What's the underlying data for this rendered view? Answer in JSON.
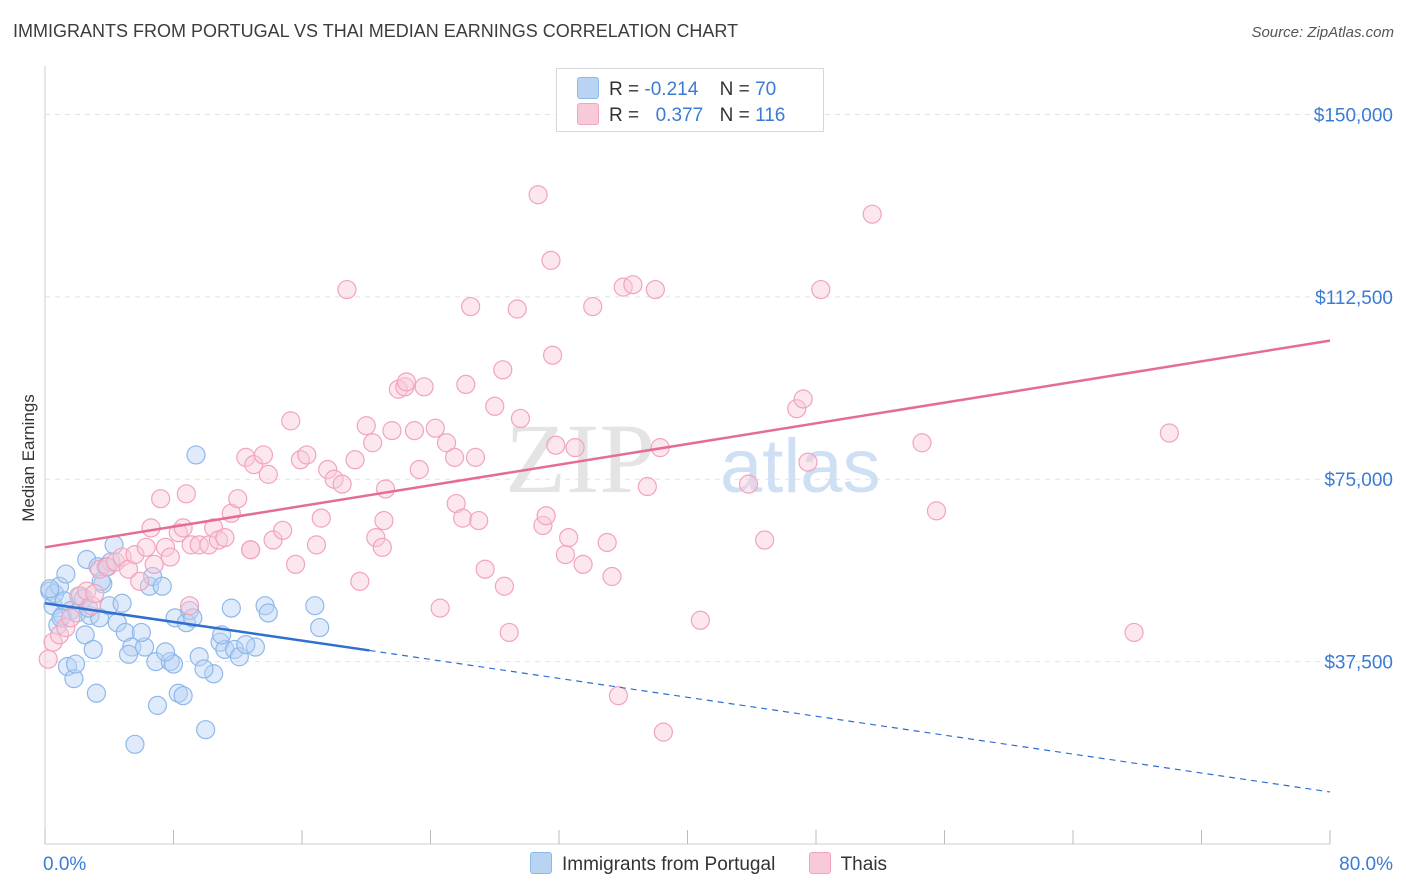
{
  "header": {
    "title": "IMMIGRANTS FROM PORTUGAL VS THAI MEDIAN EARNINGS CORRELATION CHART",
    "source": "Source: ZipAtlas.com"
  },
  "watermark": {
    "part1": "ZIP",
    "part2": "atlas"
  },
  "stats_legend": {
    "rows": [
      {
        "r_label": "R =",
        "r_value": "-0.214",
        "n_label": "N =",
        "n_value": "70",
        "color": "#8fb8ea"
      },
      {
        "r_label": "R =",
        "r_value": "0.377",
        "n_label": "N =",
        "n_value": "116",
        "color": "#f2a3bd"
      }
    ]
  },
  "chart_data": {
    "type": "scatter",
    "title": "IMMIGRANTS FROM PORTUGAL VS THAI MEDIAN EARNINGS CORRELATION CHART",
    "xlabel": "",
    "ylabel": "Median Earnings",
    "xlim": [
      0,
      80
    ],
    "ylim": [
      0,
      157500
    ],
    "x_tick_labels": [
      "0.0%",
      "80.0%"
    ],
    "y_ticks": [
      37500,
      75000,
      112500,
      150000
    ],
    "y_tick_labels": [
      "$37,500",
      "$75,000",
      "$112,500",
      "$150,000"
    ],
    "grid": true,
    "legend_position": "bottom",
    "series": [
      {
        "name": "Immigrants from Portugal",
        "color": "#8fb8ea",
        "line_color": "#2f6fd0",
        "trend": {
          "x0": 0.0,
          "y0": 49500,
          "x1": 20.2,
          "y1": 39800,
          "x_end": 80.0,
          "y_end": 10700
        },
        "points": [
          [
            0.3,
            52000
          ],
          [
            0.5,
            49000
          ],
          [
            0.6,
            51500
          ],
          [
            0.8,
            45000
          ],
          [
            0.9,
            53000
          ],
          [
            1.1,
            47000
          ],
          [
            1.2,
            50000
          ],
          [
            1.3,
            55500
          ],
          [
            1.4,
            36500
          ],
          [
            1.6,
            48000
          ],
          [
            1.8,
            34000
          ],
          [
            1.9,
            37000
          ],
          [
            2.0,
            47500
          ],
          [
            2.2,
            51000
          ],
          [
            2.4,
            50500
          ],
          [
            2.5,
            43000
          ],
          [
            2.6,
            58500
          ],
          [
            2.8,
            47000
          ],
          [
            3.0,
            40000
          ],
          [
            3.2,
            31000
          ],
          [
            3.3,
            57000
          ],
          [
            3.4,
            46500
          ],
          [
            3.6,
            53500
          ],
          [
            3.8,
            57000
          ],
          [
            4.0,
            49000
          ],
          [
            4.3,
            61500
          ],
          [
            4.5,
            45500
          ],
          [
            4.8,
            49500
          ],
          [
            5.0,
            43500
          ],
          [
            5.4,
            40500
          ],
          [
            5.6,
            20500
          ],
          [
            6.2,
            40500
          ],
          [
            6.5,
            53000
          ],
          [
            6.7,
            55000
          ],
          [
            6.9,
            37500
          ],
          [
            7.0,
            28500
          ],
          [
            7.3,
            53000
          ],
          [
            7.8,
            37500
          ],
          [
            8.0,
            37000
          ],
          [
            8.1,
            46500
          ],
          [
            8.3,
            31000
          ],
          [
            8.6,
            30500
          ],
          [
            8.8,
            45500
          ],
          [
            9.0,
            48000
          ],
          [
            9.2,
            46500
          ],
          [
            9.4,
            80000
          ],
          [
            9.6,
            38500
          ],
          [
            10.0,
            23500
          ],
          [
            10.5,
            35000
          ],
          [
            10.9,
            41500
          ],
          [
            11.2,
            40000
          ],
          [
            11.6,
            48500
          ],
          [
            11.8,
            40000
          ],
          [
            12.1,
            38500
          ],
          [
            13.1,
            40500
          ],
          [
            13.7,
            49000
          ],
          [
            13.9,
            47500
          ],
          [
            16.8,
            49000
          ],
          [
            17.1,
            44500
          ],
          [
            0.3,
            52500
          ],
          [
            1.0,
            46500
          ],
          [
            2.7,
            48500
          ],
          [
            3.5,
            54000
          ],
          [
            4.1,
            58000
          ],
          [
            5.2,
            39000
          ],
          [
            6.0,
            43500
          ],
          [
            7.5,
            39500
          ],
          [
            9.9,
            36000
          ],
          [
            11.0,
            43000
          ],
          [
            12.5,
            41000
          ]
        ]
      },
      {
        "name": "Thais",
        "color": "#f2a3bd",
        "line_color": "#e36d93",
        "trend": {
          "x0": 0.0,
          "y0": 61000,
          "x1": 80.0,
          "y1": 103500
        },
        "points": [
          [
            0.2,
            38000
          ],
          [
            0.5,
            41500
          ],
          [
            0.9,
            43000
          ],
          [
            1.3,
            44500
          ],
          [
            1.6,
            46500
          ],
          [
            2.1,
            51000
          ],
          [
            2.6,
            52000
          ],
          [
            2.9,
            49000
          ],
          [
            3.4,
            56500
          ],
          [
            3.9,
            57000
          ],
          [
            4.4,
            58000
          ],
          [
            4.8,
            59000
          ],
          [
            5.2,
            56500
          ],
          [
            5.6,
            59500
          ],
          [
            6.3,
            61000
          ],
          [
            6.6,
            65000
          ],
          [
            6.8,
            57500
          ],
          [
            7.2,
            71000
          ],
          [
            7.5,
            61000
          ],
          [
            7.8,
            59000
          ],
          [
            8.3,
            64000
          ],
          [
            8.6,
            65000
          ],
          [
            8.8,
            72000
          ],
          [
            9.1,
            61500
          ],
          [
            9.6,
            61500
          ],
          [
            10.2,
            61500
          ],
          [
            10.5,
            65000
          ],
          [
            10.8,
            62500
          ],
          [
            11.2,
            63000
          ],
          [
            11.6,
            68000
          ],
          [
            12.0,
            71000
          ],
          [
            12.5,
            79500
          ],
          [
            12.8,
            60500
          ],
          [
            13.0,
            78000
          ],
          [
            13.6,
            80000
          ],
          [
            13.9,
            76000
          ],
          [
            14.2,
            62500
          ],
          [
            14.8,
            64500
          ],
          [
            15.3,
            87000
          ],
          [
            15.6,
            57500
          ],
          [
            15.9,
            79000
          ],
          [
            16.3,
            80000
          ],
          [
            16.9,
            61500
          ],
          [
            17.2,
            67000
          ],
          [
            17.6,
            77000
          ],
          [
            18.0,
            75000
          ],
          [
            18.5,
            74000
          ],
          [
            18.8,
            114000
          ],
          [
            19.3,
            79000
          ],
          [
            19.6,
            54000
          ],
          [
            20.0,
            86000
          ],
          [
            20.4,
            82500
          ],
          [
            20.6,
            63000
          ],
          [
            21.1,
            66500
          ],
          [
            21.2,
            73000
          ],
          [
            21.6,
            85000
          ],
          [
            22.0,
            93500
          ],
          [
            22.4,
            94000
          ],
          [
            22.5,
            95000
          ],
          [
            23.0,
            85000
          ],
          [
            23.3,
            77000
          ],
          [
            23.6,
            94000
          ],
          [
            24.3,
            85500
          ],
          [
            24.6,
            48500
          ],
          [
            25.0,
            82500
          ],
          [
            25.5,
            79500
          ],
          [
            25.6,
            70000
          ],
          [
            26.0,
            67000
          ],
          [
            26.2,
            94500
          ],
          [
            26.5,
            110500
          ],
          [
            26.8,
            79500
          ],
          [
            27.0,
            66500
          ],
          [
            27.4,
            56500
          ],
          [
            28.0,
            90000
          ],
          [
            28.5,
            97500
          ],
          [
            28.6,
            53000
          ],
          [
            28.9,
            43500
          ],
          [
            29.4,
            110000
          ],
          [
            29.6,
            87500
          ],
          [
            30.7,
            133500
          ],
          [
            31.0,
            65500
          ],
          [
            31.2,
            67500
          ],
          [
            31.5,
            120000
          ],
          [
            31.8,
            82000
          ],
          [
            31.6,
            100500
          ],
          [
            32.4,
            59500
          ],
          [
            32.6,
            63000
          ],
          [
            33.0,
            81500
          ],
          [
            33.5,
            57500
          ],
          [
            34.1,
            110500
          ],
          [
            35.0,
            62000
          ],
          [
            35.3,
            55000
          ],
          [
            35.7,
            30500
          ],
          [
            36.0,
            114500
          ],
          [
            36.6,
            115000
          ],
          [
            37.5,
            73500
          ],
          [
            38.0,
            114000
          ],
          [
            38.3,
            81500
          ],
          [
            38.5,
            23000
          ],
          [
            40.8,
            46000
          ],
          [
            43.8,
            74000
          ],
          [
            44.8,
            62500
          ],
          [
            46.8,
            89500
          ],
          [
            47.2,
            91500
          ],
          [
            47.5,
            78500
          ],
          [
            48.3,
            114000
          ],
          [
            51.5,
            129500
          ],
          [
            54.6,
            82500
          ],
          [
            55.5,
            68500
          ],
          [
            67.8,
            43500
          ],
          [
            70.0,
            84500
          ],
          [
            12.8,
            60500
          ],
          [
            21.0,
            61000
          ],
          [
            3.1,
            51500
          ],
          [
            5.9,
            54000
          ],
          [
            9.0,
            49000
          ]
        ]
      }
    ]
  }
}
